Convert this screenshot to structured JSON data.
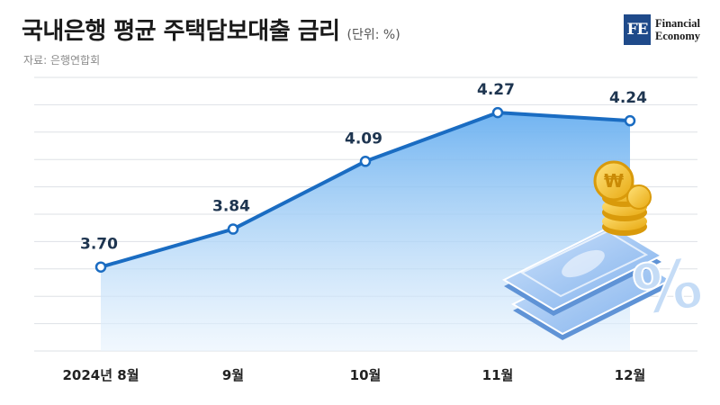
{
  "header": {
    "title": "국내은행 평균 주택담보대출 금리",
    "unit": "(단위: %)",
    "source": "자료: 은행연합회"
  },
  "logo": {
    "mark": "FE",
    "line1": "Financial",
    "line2": "Economy"
  },
  "colors": {
    "line": "#1a6cc2",
    "area_top": "#6ab0f0",
    "area_bottom": "#e8f3fd",
    "grid": "#dde1e6",
    "label": "#1e3550"
  },
  "chart_data": {
    "type": "area",
    "categories": [
      "2024년 8월",
      "9월",
      "10월",
      "11월",
      "12월"
    ],
    "values": [
      3.7,
      3.84,
      4.09,
      4.27,
      4.24
    ],
    "value_labels": [
      "3.70",
      "3.84",
      "4.09",
      "4.27",
      "4.24"
    ],
    "ylim": [
      3.39,
      4.4
    ],
    "grid": true,
    "legend": "none",
    "decoration": [
      "coin-stack-icon",
      "banknote-stack-icon",
      "percent-sign-icon"
    ]
  }
}
